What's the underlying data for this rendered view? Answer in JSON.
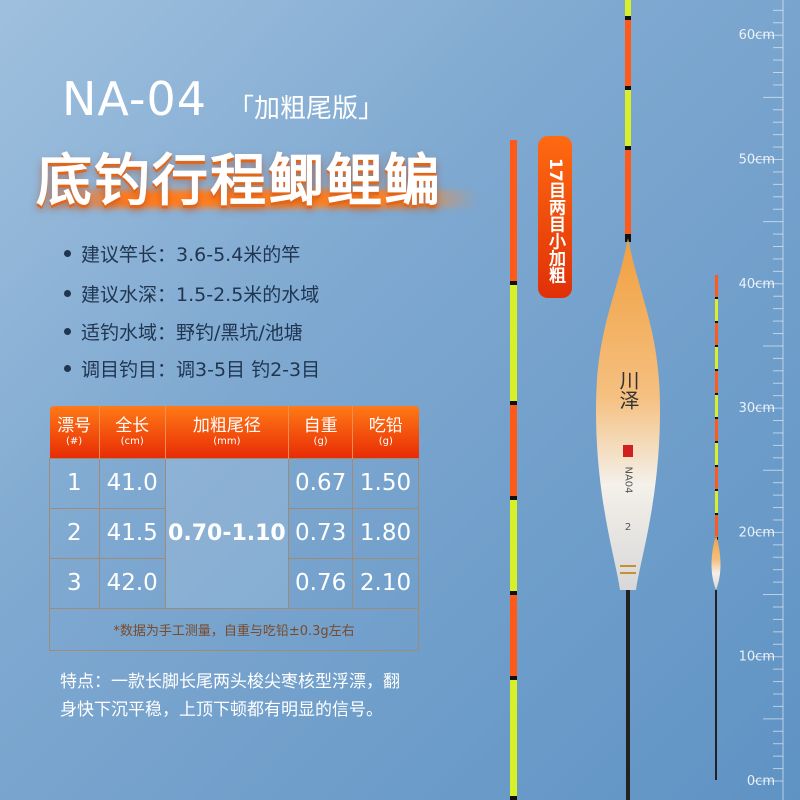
{
  "header": {
    "model": "NA-04",
    "edition": "「加粗尾版」",
    "title": "底钓行程鲫鲤鳊"
  },
  "features": [
    "建议竿长：3.6-5.4米的竿",
    "建议水深：1.5-2.5米的水域",
    "适钓水域：野钓/黑坑/池塘",
    "调目钓目：调3-5目 钓2-3目"
  ],
  "table": {
    "headers": [
      {
        "label": "漂号",
        "unit": "(#)"
      },
      {
        "label": "全长",
        "unit": "(cm)"
      },
      {
        "label": "加粗尾径",
        "unit": "(mm)"
      },
      {
        "label": "自重",
        "unit": "(g)"
      },
      {
        "label": "吃铅",
        "unit": "(g)"
      }
    ],
    "rows": [
      [
        "1",
        "41.0",
        "0.67",
        "1.50"
      ],
      [
        "2",
        "41.5",
        "0.73",
        "1.80"
      ],
      [
        "3",
        "42.0",
        "0.76",
        "2.10"
      ]
    ],
    "tail_diameter": "0.70-1.10",
    "note": "*数据为手工测量，自重与吃铅±0.3g左右"
  },
  "description": "特点：一款长脚长尾两头梭尖枣核型浮漂，翻身快下沉平稳，上顶下顿都有明显的信号。",
  "badge": "17目两目小加粗",
  "float_brand": "川泽",
  "float_label": "NA04",
  "float_number": "2",
  "ruler": [
    "60cm",
    "50cm",
    "40cm",
    "30cm",
    "20cm",
    "10cm",
    "0cm"
  ],
  "colors": {
    "accent": "#ff6a10",
    "tail_orange": "#ff5a1a",
    "tail_yellow": "#d8f028"
  }
}
